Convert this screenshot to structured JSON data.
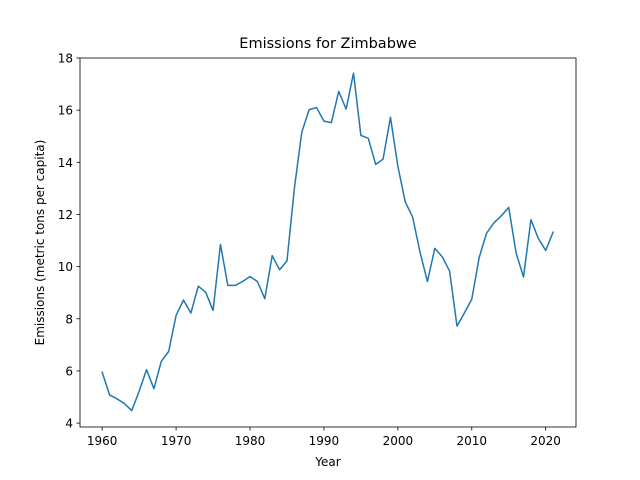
{
  "chart_data": {
    "type": "line",
    "title": "Emissions for Zimbabwe",
    "xlabel": "Year",
    "ylabel": "Emissions (metric tons per capita)",
    "xlim": [
      1957,
      2024.1
    ],
    "ylim": [
      3.85,
      18.0
    ],
    "xticks": [
      1960,
      1970,
      1980,
      1990,
      2000,
      2010,
      2020
    ],
    "yticks": [
      4,
      6,
      8,
      10,
      12,
      14,
      16,
      18
    ],
    "grid": false,
    "series": [
      {
        "color": "#1f77b4",
        "x": [
          1960,
          1961,
          1962,
          1963,
          1964,
          1965,
          1966,
          1967,
          1968,
          1969,
          1970,
          1971,
          1972,
          1973,
          1974,
          1975,
          1976,
          1977,
          1978,
          1979,
          1980,
          1981,
          1982,
          1983,
          1984,
          1985,
          1986,
          1987,
          1988,
          1989,
          1990,
          1991,
          1992,
          1993,
          1994,
          1995,
          1996,
          1997,
          1998,
          1999,
          2000,
          2001,
          2002,
          2003,
          2004,
          2005,
          2006,
          2007,
          2008,
          2009,
          2010,
          2011,
          2012,
          2013,
          2014,
          2015,
          2016,
          2017,
          2018,
          2019,
          2020,
          2021
        ],
        "values": [
          5.95,
          5.08,
          4.93,
          4.75,
          4.48,
          5.22,
          6.05,
          5.32,
          6.37,
          6.75,
          8.13,
          8.72,
          8.22,
          9.25,
          9.02,
          8.32,
          10.85,
          9.28,
          9.28,
          9.43,
          9.62,
          9.43,
          8.77,
          10.42,
          9.88,
          10.22,
          13.0,
          15.15,
          16.02,
          16.1,
          15.58,
          15.52,
          16.72,
          16.04,
          17.42,
          15.03,
          14.92,
          13.92,
          14.12,
          15.73,
          13.85,
          12.48,
          11.9,
          10.55,
          9.43,
          10.7,
          10.38,
          9.83,
          7.72,
          8.22,
          8.75,
          10.35,
          11.28,
          11.68,
          11.95,
          12.27,
          10.52,
          9.6,
          11.8,
          11.08,
          10.62,
          11.32
        ]
      }
    ]
  }
}
